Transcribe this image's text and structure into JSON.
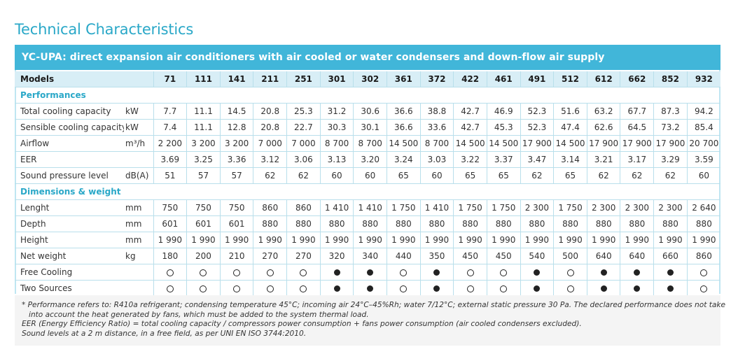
{
  "title": "Technical Characteristics",
  "banner": "YC-UPA: direct expansion air conditioners with air cooled or water condensers and down-flow air supply",
  "models_header": "Models",
  "models": [
    "71",
    "111",
    "141",
    "211",
    "251",
    "301",
    "302",
    "361",
    "372",
    "422",
    "461",
    "491",
    "512",
    "612",
    "662",
    "852",
    "932"
  ],
  "sections": [
    {
      "title": "Performances",
      "rows": [
        {
          "label": "Total cooling capacity",
          "unit": "kW",
          "values": [
            "7.7",
            "11.1",
            "14.5",
            "20.8",
            "25.3",
            "31.2",
            "30.6",
            "36.6",
            "38.8",
            "42.7",
            "46.9",
            "52.3",
            "51.6",
            "63.2",
            "67.7",
            "87.3",
            "94.2"
          ]
        },
        {
          "label": "Sensible cooling capacity",
          "unit": "kW",
          "values": [
            "7.4",
            "11.1",
            "12.8",
            "20.8",
            "22.7",
            "30.3",
            "30.1",
            "36.6",
            "33.6",
            "42.7",
            "45.3",
            "52.3",
            "47.4",
            "62.6",
            "64.5",
            "73.2",
            "85.4"
          ]
        },
        {
          "label": "Airflow",
          "unit": "m³/h",
          "values": [
            "2 200",
            "3 200",
            "3 200",
            "7 000",
            "7 000",
            "8 700",
            "8 700",
            "14 500",
            "8 700",
            "14 500",
            "14 500",
            "17 900",
            "14 500",
            "17 900",
            "17 900",
            "17 900",
            "20 700"
          ]
        },
        {
          "label": "EER",
          "unit": "",
          "values": [
            "3.69",
            "3.25",
            "3.36",
            "3.12",
            "3.06",
            "3.13",
            "3.20",
            "3.24",
            "3.03",
            "3.22",
            "3.37",
            "3.47",
            "3.14",
            "3.21",
            "3.17",
            "3.29",
            "3.59"
          ]
        },
        {
          "label": "Sound pressure level",
          "unit": "dB(A)",
          "values": [
            "51",
            "57",
            "57",
            "62",
            "62",
            "60",
            "60",
            "65",
            "60",
            "65",
            "65",
            "62",
            "65",
            "62",
            "62",
            "62",
            "60"
          ]
        }
      ]
    },
    {
      "title": "Dimensions & weight",
      "rows": [
        {
          "label": "Lenght",
          "unit": "mm",
          "values": [
            "750",
            "750",
            "750",
            "860",
            "860",
            "1 410",
            "1 410",
            "1 750",
            "1 410",
            "1 750",
            "1 750",
            "2 300",
            "1 750",
            "2 300",
            "2 300",
            "2 300",
            "2 640"
          ]
        },
        {
          "label": "Depth",
          "unit": "mm",
          "values": [
            "601",
            "601",
            "601",
            "880",
            "880",
            "880",
            "880",
            "880",
            "880",
            "880",
            "880",
            "880",
            "880",
            "880",
            "880",
            "880",
            "880"
          ]
        },
        {
          "label": "Height",
          "unit": "mm",
          "values": [
            "1 990",
            "1 990",
            "1 990",
            "1 990",
            "1 990",
            "1 990",
            "1 990",
            "1 990",
            "1 990",
            "1 990",
            "1 990",
            "1 990",
            "1 990",
            "1 990",
            "1 990",
            "1 990",
            "1 990"
          ]
        },
        {
          "label": "Net weight",
          "unit": "kg",
          "values": [
            "180",
            "200",
            "210",
            "270",
            "270",
            "320",
            "340",
            "440",
            "350",
            "450",
            "450",
            "540",
            "500",
            "640",
            "640",
            "660",
            "860"
          ]
        },
        {
          "label": "Free Cooling",
          "unit": "",
          "symbols": [
            "open",
            "open",
            "open",
            "open",
            "open",
            "filled",
            "filled",
            "open",
            "filled",
            "open",
            "open",
            "filled",
            "open",
            "filled",
            "filled",
            "filled",
            "open"
          ]
        },
        {
          "label": "Two Sources",
          "unit": "",
          "symbols": [
            "open",
            "open",
            "open",
            "open",
            "open",
            "filled",
            "filled",
            "open",
            "filled",
            "open",
            "open",
            "filled",
            "open",
            "filled",
            "filled",
            "filled",
            "open"
          ]
        }
      ]
    }
  ],
  "notes": [
    "* Performance refers to: R410a refrigerant; condensing temperature 45°C; incoming air 24°C–45%Rh; water 7/12°C; external static pressure 30 Pa. The declared performance does not take",
    "into account the heat generated by fans, which must be added to the system thermal load.",
    "EER (Energy Efficiency Ratio) = total cooling capacity / compressors power consumption + fans power consumption (air cooled condensers excluded).",
    "Sound levels at a 2 m distance, in a free field, as per UNI EN ISO 3744:2010."
  ]
}
